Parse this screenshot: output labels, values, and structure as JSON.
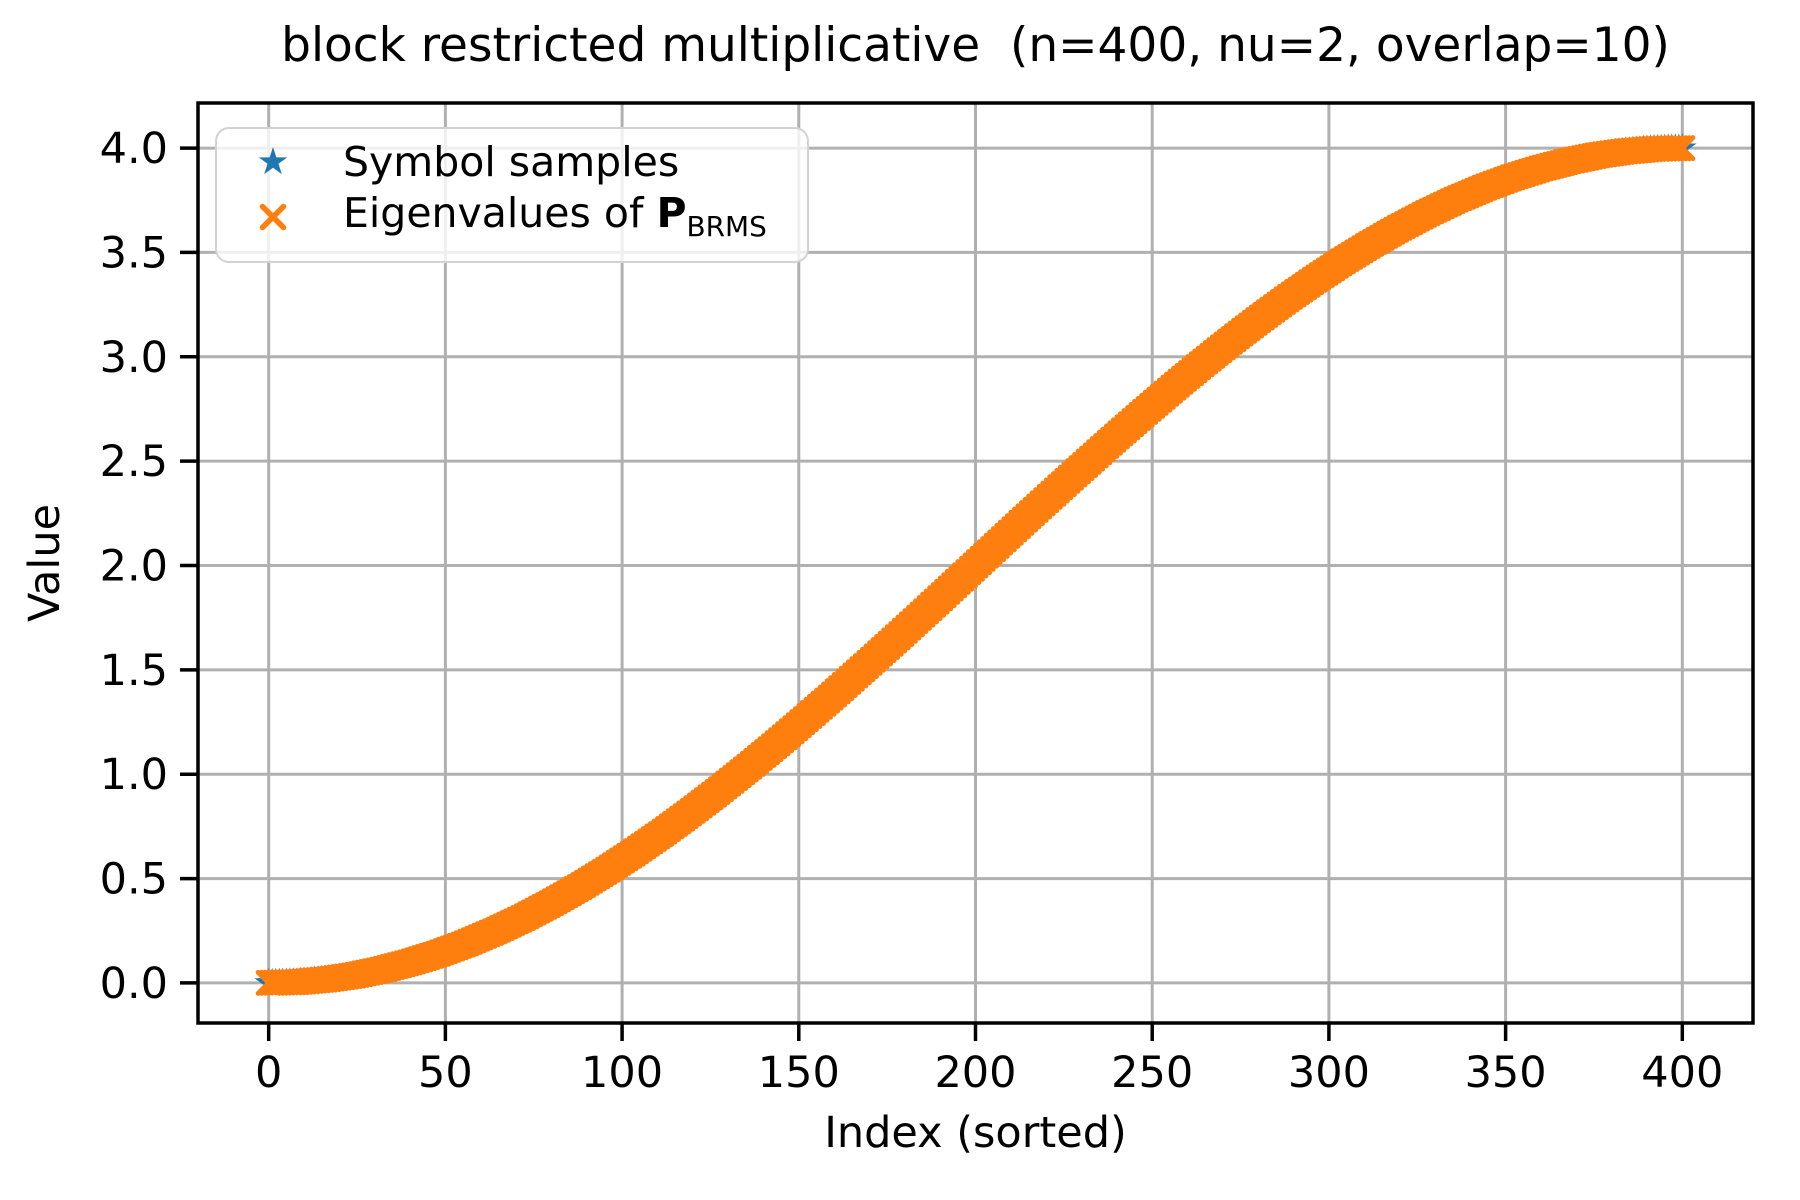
{
  "chart_data": {
    "type": "scatter",
    "title": "block restricted multiplicative  (n=400, nu=2, overlap=10)",
    "xlabel": "Index (sorted)",
    "ylabel": "Value",
    "xlim": [
      -20,
      420
    ],
    "ylim": [
      -0.192,
      4.216
    ],
    "grid": true,
    "grid_color": "#b0b0b0",
    "axes_color": "#000000",
    "legend_position": "upper left",
    "x_ticks": {
      "values": [
        0,
        50,
        100,
        150,
        200,
        250,
        300,
        350,
        400
      ],
      "labels": [
        "0",
        "50",
        "100",
        "150",
        "200",
        "250",
        "300",
        "350",
        "400"
      ]
    },
    "y_ticks": {
      "values": [
        0.0,
        0.5,
        1.0,
        1.5,
        2.0,
        2.5,
        3.0,
        3.5,
        4.0
      ],
      "labels": [
        "0.0",
        "0.5",
        "1.0",
        "1.5",
        "2.0",
        "2.5",
        "3.0",
        "3.5",
        "4.0"
      ]
    },
    "series": [
      {
        "name": "Symbol samples",
        "marker": "star",
        "color": "#1f77b4",
        "n_points": 401,
        "x": [
          0,
          8,
          16,
          24,
          32,
          40,
          48,
          56,
          64,
          72,
          80,
          88,
          96,
          104,
          112,
          120,
          128,
          136,
          144,
          152,
          160,
          168,
          176,
          184,
          192,
          200,
          208,
          216,
          224,
          232,
          240,
          248,
          256,
          264,
          272,
          280,
          288,
          296,
          304,
          312,
          320,
          328,
          336,
          344,
          352,
          360,
          368,
          376,
          384,
          392,
          400
        ],
        "y": [
          0.0,
          0.004,
          0.016,
          0.035,
          0.063,
          0.098,
          0.14,
          0.19,
          0.247,
          0.311,
          0.382,
          0.459,
          0.542,
          0.631,
          0.725,
          0.824,
          0.928,
          1.036,
          1.148,
          1.264,
          1.382,
          1.503,
          1.625,
          1.749,
          1.874,
          2.0,
          2.126,
          2.251,
          2.375,
          2.497,
          2.618,
          2.736,
          2.852,
          2.964,
          3.072,
          3.176,
          3.275,
          3.369,
          3.458,
          3.541,
          3.618,
          3.689,
          3.753,
          3.81,
          3.86,
          3.902,
          3.937,
          3.965,
          3.984,
          3.996,
          4.0
        ]
      },
      {
        "name": "Eigenvalues of P_BRMS",
        "name_rich": {
          "prefix": "Eigenvalues of ",
          "bold": "P",
          "sub": "BRMS"
        },
        "marker": "x",
        "color": "#ff7f0e",
        "n_points": 401,
        "x": [
          0,
          8,
          16,
          24,
          32,
          40,
          48,
          56,
          64,
          72,
          80,
          88,
          96,
          104,
          112,
          120,
          128,
          136,
          144,
          152,
          160,
          168,
          176,
          184,
          192,
          200,
          208,
          216,
          224,
          232,
          240,
          248,
          256,
          264,
          272,
          280,
          288,
          296,
          304,
          312,
          320,
          328,
          336,
          344,
          352,
          360,
          368,
          376,
          384,
          392,
          400
        ],
        "y": [
          0.0,
          0.004,
          0.016,
          0.035,
          0.063,
          0.098,
          0.14,
          0.19,
          0.247,
          0.311,
          0.382,
          0.459,
          0.542,
          0.631,
          0.725,
          0.824,
          0.928,
          1.036,
          1.148,
          1.264,
          1.382,
          1.503,
          1.625,
          1.749,
          1.874,
          2.0,
          2.126,
          2.251,
          2.375,
          2.497,
          2.618,
          2.736,
          2.852,
          2.964,
          3.072,
          3.176,
          3.275,
          3.369,
          3.458,
          3.541,
          3.618,
          3.689,
          3.753,
          3.81,
          3.86,
          3.902,
          3.937,
          3.965,
          3.984,
          3.996,
          4.0
        ]
      }
    ]
  }
}
